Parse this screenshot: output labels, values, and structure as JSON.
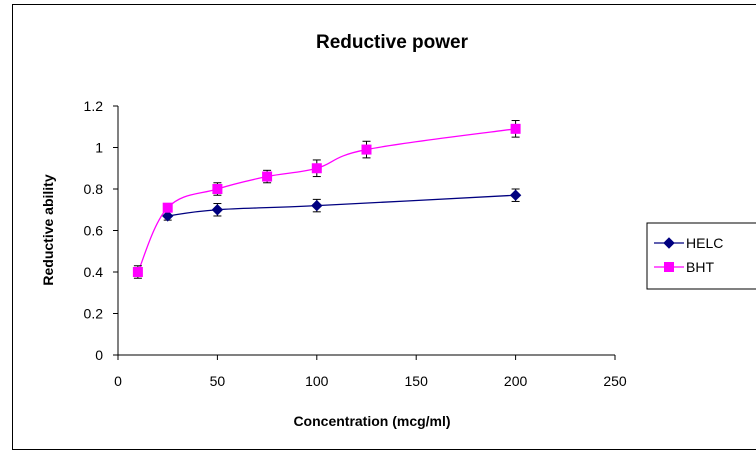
{
  "chart_data": {
    "type": "line",
    "title": "Reductive power",
    "xlabel": "Concentration (mcg/ml)",
    "ylabel": "Reductive ability",
    "xlim": [
      0,
      250
    ],
    "ylim": [
      0,
      1.2
    ],
    "xticks": [
      "0",
      "50",
      "100",
      "150",
      "200",
      "250"
    ],
    "yticks": [
      "0",
      "0.2",
      "0.4",
      "0.6",
      "0.8",
      "1",
      "1.2"
    ],
    "grid": false,
    "legend_position": "right",
    "series": [
      {
        "name": "HELC",
        "color": "#000080",
        "marker": "diamond",
        "x": [
          25,
          50,
          100,
          200
        ],
        "y": [
          0.67,
          0.7,
          0.72,
          0.77
        ],
        "err": [
          0.02,
          0.03,
          0.03,
          0.03
        ]
      },
      {
        "name": "BHT",
        "color": "#ff00ff",
        "marker": "square",
        "x": [
          10,
          25,
          50,
          75,
          100,
          125,
          200
        ],
        "y": [
          0.4,
          0.71,
          0.8,
          0.86,
          0.9,
          0.99,
          1.09
        ],
        "err": [
          0.03,
          0.02,
          0.03,
          0.03,
          0.04,
          0.04,
          0.04
        ]
      }
    ]
  }
}
